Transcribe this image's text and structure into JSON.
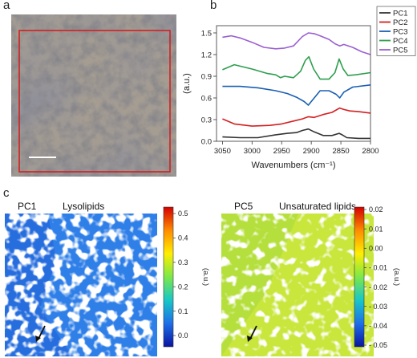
{
  "panels": {
    "a": "a",
    "b": "b",
    "c": "c"
  },
  "micrograph": {
    "has_scale_bar": true,
    "roi_box_color": "#d32020"
  },
  "chart_data": {
    "type": "line",
    "xlabel": "Wavenumbers (cm⁻¹)",
    "ylabel": "(a.u.)",
    "xlim": [
      3060,
      2800
    ],
    "ylim": [
      0,
      1.6
    ],
    "x_ticks": [
      "3050",
      "3000",
      "2950",
      "2900",
      "2850",
      "2800"
    ],
    "y_ticks": [
      "0.0",
      "0.3",
      "0.6",
      "0.9",
      "1.2",
      "1.5"
    ],
    "legend_position": "top-right",
    "series": [
      {
        "name": "PC1",
        "color": "#333333",
        "x": [
          3050,
          3020,
          2990,
          2960,
          2940,
          2925,
          2915,
          2905,
          2895,
          2880,
          2865,
          2853,
          2848,
          2840,
          2820,
          2800
        ],
        "y": [
          0.06,
          0.05,
          0.05,
          0.09,
          0.11,
          0.12,
          0.15,
          0.17,
          0.13,
          0.08,
          0.08,
          0.11,
          0.09,
          0.05,
          0.04,
          0.04
        ]
      },
      {
        "name": "PC2",
        "color": "#d32020",
        "x": [
          3050,
          3030,
          3000,
          2970,
          2950,
          2930,
          2915,
          2905,
          2895,
          2880,
          2865,
          2852,
          2845,
          2835,
          2820,
          2800
        ],
        "y": [
          0.31,
          0.24,
          0.21,
          0.22,
          0.24,
          0.28,
          0.31,
          0.34,
          0.33,
          0.37,
          0.4,
          0.46,
          0.44,
          0.42,
          0.41,
          0.39
        ]
      },
      {
        "name": "PC3",
        "color": "#1a5fb4",
        "x": [
          3050,
          3020,
          2990,
          2960,
          2940,
          2925,
          2912,
          2905,
          2898,
          2885,
          2870,
          2858,
          2852,
          2845,
          2830,
          2800
        ],
        "y": [
          0.76,
          0.76,
          0.74,
          0.7,
          0.66,
          0.61,
          0.55,
          0.5,
          0.57,
          0.7,
          0.7,
          0.65,
          0.6,
          0.68,
          0.75,
          0.78
        ]
      },
      {
        "name": "PC4",
        "color": "#2e9e4f",
        "x": [
          3050,
          3030,
          3000,
          2975,
          2960,
          2952,
          2945,
          2930,
          2918,
          2910,
          2904,
          2896,
          2885,
          2870,
          2860,
          2853,
          2846,
          2838,
          2825,
          2800
        ],
        "y": [
          0.99,
          1.06,
          1.0,
          0.94,
          0.92,
          0.88,
          0.9,
          0.88,
          0.97,
          1.12,
          1.17,
          1.0,
          0.86,
          0.86,
          0.95,
          1.14,
          1.0,
          0.91,
          0.92,
          0.95
        ]
      },
      {
        "name": "PC5",
        "color": "#9a5fd1",
        "x": [
          3050,
          3035,
          3020,
          3000,
          2980,
          2960,
          2945,
          2930,
          2915,
          2905,
          2895,
          2885,
          2870,
          2860,
          2852,
          2845,
          2830,
          2815,
          2800
        ],
        "y": [
          1.44,
          1.46,
          1.43,
          1.37,
          1.3,
          1.28,
          1.29,
          1.32,
          1.45,
          1.5,
          1.49,
          1.46,
          1.41,
          1.35,
          1.32,
          1.34,
          1.3,
          1.24,
          1.2
        ]
      }
    ]
  },
  "maps": [
    {
      "label": "PC1",
      "title": "Lysolipids",
      "colorbar_label": "(a.u.)",
      "colorbar_ticks": [
        "0.5",
        "0.4",
        "0.3",
        "0.2",
        "0.1",
        "0.0"
      ],
      "cmap_stops": [
        "#d40000",
        "#ff8c00",
        "#ffee00",
        "#7ce84a",
        "#18c7c7",
        "#1d6fe8",
        "#0a14a0"
      ],
      "base_color": "#2f7fe8"
    },
    {
      "label": "PC5",
      "title": "Unsaturated lipids",
      "colorbar_label": "(a.u.)",
      "colorbar_ticks": [
        "0.02",
        "0.01",
        "0.00",
        "- 0.01",
        "- 0.02",
        "- 0.03",
        "- 0.04",
        "- 0.05"
      ],
      "cmap_stops": [
        "#d40000",
        "#ff8c00",
        "#ffee00",
        "#7ce84a",
        "#18c7c7",
        "#1d6fe8",
        "#0a14a0"
      ],
      "base_color": "#c8e63c"
    }
  ]
}
